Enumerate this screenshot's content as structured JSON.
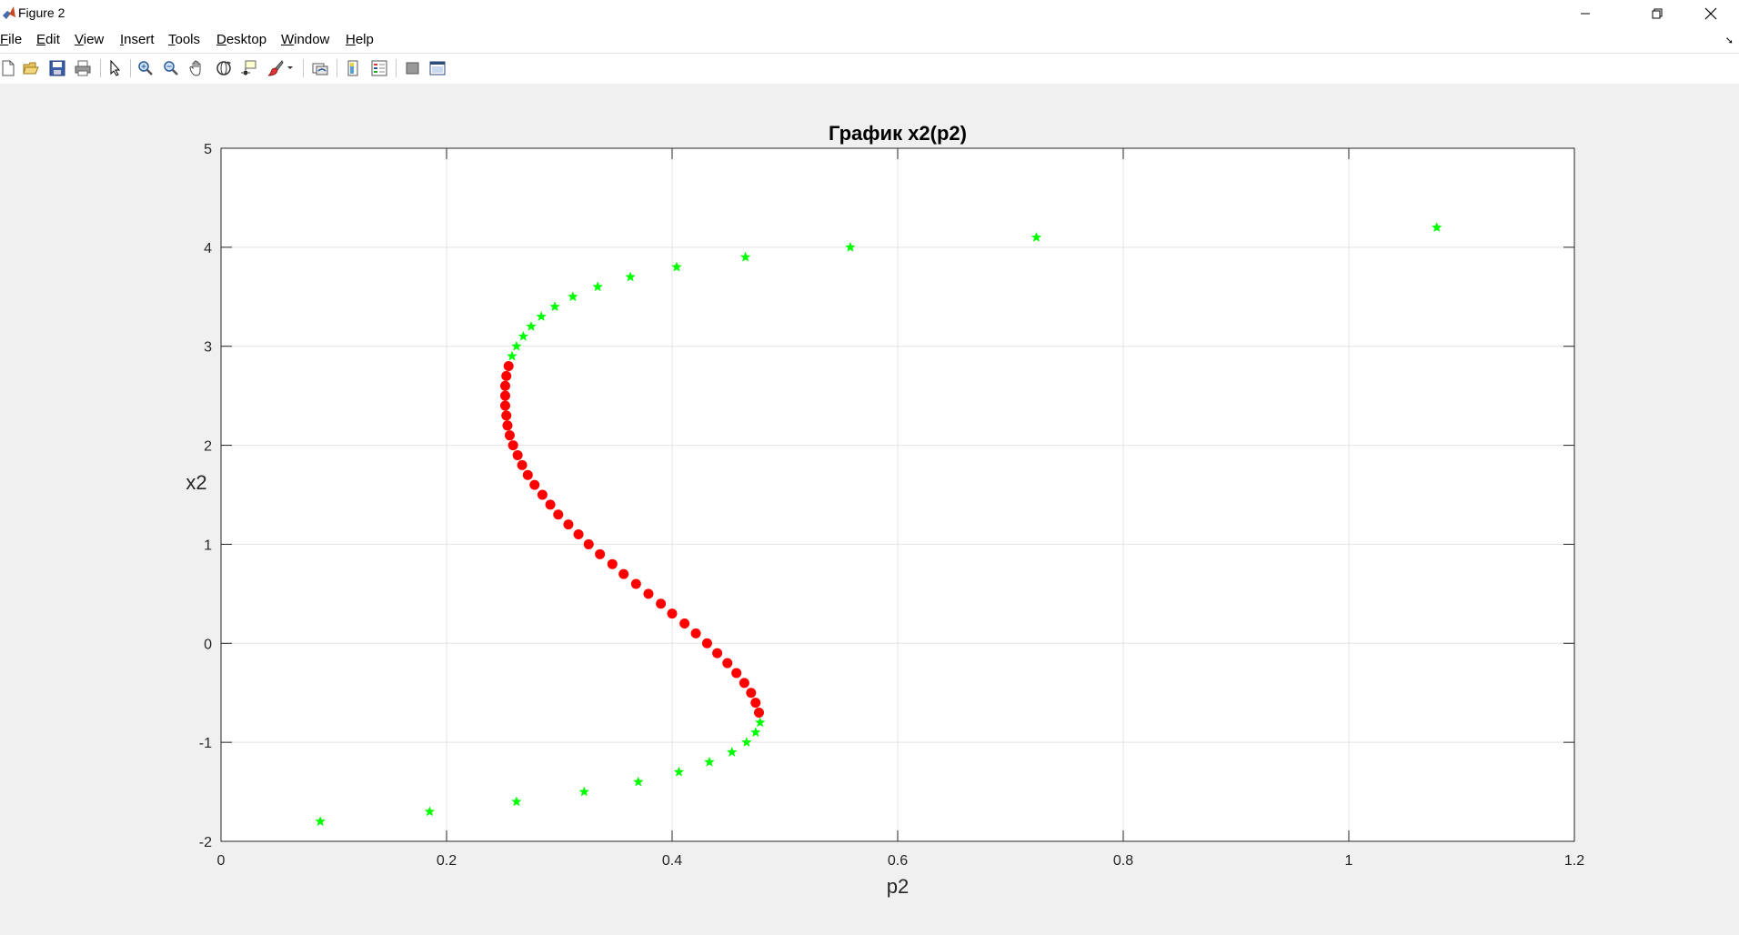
{
  "window": {
    "title": "Figure 2",
    "controls": [
      "minimize",
      "restore",
      "close"
    ]
  },
  "menu": {
    "items": [
      {
        "key": "F",
        "rest": "ile"
      },
      {
        "key": "E",
        "rest": "dit"
      },
      {
        "key": "V",
        "rest": "iew"
      },
      {
        "key": "I",
        "rest": "nsert"
      },
      {
        "key": "T",
        "rest": "ools"
      },
      {
        "key": "D",
        "rest": "esktop"
      },
      {
        "key": "W",
        "rest": "indow"
      },
      {
        "key": "H",
        "rest": "elp"
      }
    ],
    "dock_glyph": "➘"
  },
  "toolbar": {
    "icons": [
      "new-figure-icon",
      "open-file-icon",
      "save-icon",
      "print-icon",
      "edit-plot-icon",
      "zoom-in-icon",
      "zoom-out-icon",
      "pan-icon",
      "rotate-3d-icon",
      "data-cursor-icon",
      "brush-icon",
      "brush-dropdown-icon",
      "link-plot-icon",
      "insert-colorbar-icon",
      "insert-legend-icon",
      "hide-plot-tools-icon",
      "show-plot-tools-icon"
    ]
  },
  "chart_data": {
    "type": "scatter",
    "title": "График x2(p2)",
    "xlabel": "p2",
    "ylabel": "x2",
    "xlim": [
      0,
      1.2
    ],
    "ylim": [
      -2,
      5
    ],
    "xticks": [
      "0",
      "0.2",
      "0.4",
      "0.6",
      "0.8",
      "1",
      "1.2"
    ],
    "yticks": [
      "-2",
      "-1",
      "0",
      "1",
      "2",
      "3",
      "4",
      "5"
    ],
    "grid": true,
    "box": true,
    "series": [
      {
        "marker": "pentagram",
        "color": "#00ff00",
        "points": [
          [
            0.088,
            -1.8
          ],
          [
            0.185,
            -1.7
          ],
          [
            0.262,
            -1.6
          ],
          [
            0.322,
            -1.5
          ],
          [
            0.37,
            -1.4
          ],
          [
            0.406,
            -1.3
          ],
          [
            0.433,
            -1.2
          ],
          [
            0.453,
            -1.1
          ],
          [
            0.466,
            -1.0
          ],
          [
            0.474,
            -0.9
          ],
          [
            0.478,
            -0.8
          ],
          [
            0.258,
            2.9
          ],
          [
            0.262,
            3.0
          ],
          [
            0.268,
            3.1
          ],
          [
            0.275,
            3.2
          ],
          [
            0.284,
            3.3
          ],
          [
            0.296,
            3.4
          ],
          [
            0.312,
            3.5
          ],
          [
            0.334,
            3.6
          ],
          [
            0.363,
            3.7
          ],
          [
            0.404,
            3.8
          ],
          [
            0.465,
            3.9
          ],
          [
            0.558,
            4.0
          ],
          [
            0.723,
            4.1
          ],
          [
            1.078,
            4.2
          ]
        ]
      },
      {
        "marker": "circle",
        "color": "#ff0000",
        "points": [
          [
            0.477,
            -0.7
          ],
          [
            0.474,
            -0.6
          ],
          [
            0.47,
            -0.5
          ],
          [
            0.464,
            -0.4
          ],
          [
            0.457,
            -0.3
          ],
          [
            0.449,
            -0.2
          ],
          [
            0.44,
            -0.1
          ],
          [
            0.431,
            0.0
          ],
          [
            0.421,
            0.1
          ],
          [
            0.411,
            0.2
          ],
          [
            0.4,
            0.3
          ],
          [
            0.39,
            0.4
          ],
          [
            0.379,
            0.5
          ],
          [
            0.368,
            0.6
          ],
          [
            0.357,
            0.7
          ],
          [
            0.347,
            0.8
          ],
          [
            0.336,
            0.9
          ],
          [
            0.326,
            1.0
          ],
          [
            0.317,
            1.1
          ],
          [
            0.308,
            1.2
          ],
          [
            0.299,
            1.3
          ],
          [
            0.292,
            1.4
          ],
          [
            0.285,
            1.5
          ],
          [
            0.278,
            1.6
          ],
          [
            0.272,
            1.7
          ],
          [
            0.267,
            1.8
          ],
          [
            0.263,
            1.9
          ],
          [
            0.259,
            2.0
          ],
          [
            0.256,
            2.1
          ],
          [
            0.254,
            2.2
          ],
          [
            0.253,
            2.3
          ],
          [
            0.252,
            2.4
          ],
          [
            0.252,
            2.5
          ],
          [
            0.252,
            2.6
          ],
          [
            0.253,
            2.7
          ],
          [
            0.255,
            2.8
          ]
        ]
      }
    ]
  }
}
